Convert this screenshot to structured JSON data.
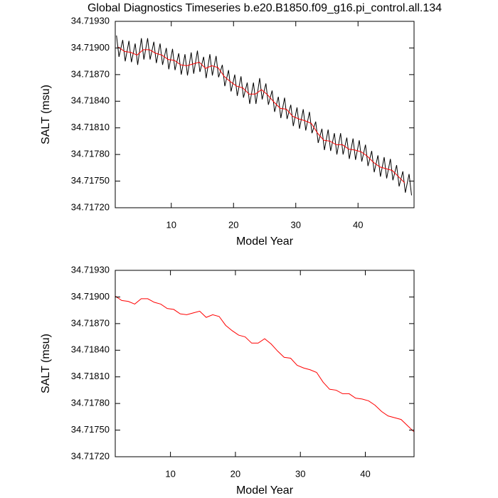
{
  "chart_data": [
    {
      "type": "line",
      "title": "Global Diagnostics Timeseries b.e20.B1850.f09_g16.pi_control.all.134",
      "xlabel": "Model Year",
      "ylabel": "SALT (msu)",
      "xlim": [
        1,
        49
      ],
      "xticks": [
        10,
        20,
        30,
        40
      ],
      "ylim": [
        34.7172,
        34.7193
      ],
      "yticks": [
        {
          "value": 34.7172,
          "label": "34.71720"
        },
        {
          "value": 34.7175,
          "label": "34.71750"
        },
        {
          "value": 34.7178,
          "label": "34.71780"
        },
        {
          "value": 34.7181,
          "label": "34.71810"
        },
        {
          "value": 34.7184,
          "label": "34.71840"
        },
        {
          "value": 34.7187,
          "label": "34.71870"
        },
        {
          "value": 34.719,
          "label": "34.71900"
        },
        {
          "value": 34.7193,
          "label": "34.71930"
        }
      ],
      "series": [
        {
          "color": "#000000",
          "x": [
            1.2,
            1.6,
            2.2,
            2.6,
            3.2,
            3.6,
            4.2,
            4.6,
            5.2,
            5.6,
            6.2,
            6.6,
            7.2,
            7.6,
            8.2,
            8.6,
            9.2,
            9.6,
            10.2,
            10.6,
            11.2,
            11.6,
            12.2,
            12.6,
            13.2,
            13.6,
            14.2,
            14.6,
            15.2,
            15.6,
            16.2,
            16.6,
            17.2,
            17.6,
            18.2,
            18.6,
            19.2,
            19.6,
            20.2,
            20.6,
            21.2,
            21.6,
            22.2,
            22.6,
            23.2,
            23.6,
            24.2,
            24.6,
            25.2,
            25.6,
            26.2,
            26.6,
            27.2,
            27.6,
            28.2,
            28.6,
            29.2,
            29.6,
            30.2,
            30.6,
            31.2,
            31.6,
            32.2,
            32.6,
            33.2,
            33.6,
            34.2,
            34.6,
            35.2,
            35.6,
            36.2,
            36.6,
            37.2,
            37.6,
            38.2,
            38.6,
            39.2,
            39.6,
            40.2,
            40.6,
            41.2,
            41.6,
            42.2,
            42.6,
            43.2,
            43.6,
            44.2,
            44.6,
            45.2,
            45.6,
            46.2,
            46.6,
            47.2,
            47.6,
            48.2,
            48.6
          ],
          "values": [
            34.71914,
            34.7189,
            34.71909,
            34.71885,
            34.71908,
            34.71884,
            34.71905,
            34.71881,
            34.71911,
            34.71887,
            34.71911,
            34.71887,
            34.71907,
            34.71883,
            34.71905,
            34.71881,
            34.719,
            34.71876,
            34.71899,
            34.71875,
            34.71894,
            34.7187,
            34.71893,
            34.71869,
            34.71895,
            34.71871,
            34.71897,
            34.71873,
            34.7189,
            34.71866,
            34.71893,
            34.71869,
            34.71891,
            34.71867,
            34.71881,
            34.71857,
            34.71875,
            34.71851,
            34.7187,
            34.71846,
            34.71868,
            34.71844,
            34.71861,
            34.71837,
            34.71861,
            34.71837,
            34.71866,
            34.71842,
            34.7186,
            34.71836,
            34.71852,
            34.71828,
            34.71845,
            34.71821,
            34.71844,
            34.7182,
            34.71836,
            34.71812,
            34.71833,
            34.71809,
            34.71831,
            34.71807,
            34.71828,
            34.71804,
            34.71817,
            34.71793,
            34.71809,
            34.71785,
            34.71808,
            34.71784,
            34.71804,
            34.7178,
            34.71804,
            34.7178,
            34.71799,
            34.71775,
            34.71798,
            34.71774,
            34.71796,
            34.71772,
            34.71791,
            34.71767,
            34.71784,
            34.7176,
            34.71779,
            34.71755,
            34.71777,
            34.71753,
            34.71775,
            34.71751,
            34.71768,
            34.71744,
            34.71761,
            34.71737,
            34.71758,
            34.71734
          ]
        },
        {
          "color": "#ff0000",
          "x": [
            1.5,
            2.5,
            3.5,
            4.5,
            5.5,
            6.5,
            7.5,
            8.5,
            9.5,
            10.5,
            11.5,
            12.5,
            13.5,
            14.5,
            15.5,
            16.5,
            17.5,
            18.5,
            19.5,
            20.5,
            21.5,
            22.5,
            23.5,
            24.5,
            25.5,
            26.5,
            27.5,
            28.5,
            29.5,
            30.5,
            31.5,
            32.5,
            33.5,
            34.5,
            35.5,
            36.5,
            37.5,
            38.5,
            39.5,
            40.5,
            41.5,
            42.5,
            43.5,
            44.5,
            45.5,
            46.5,
            47.5
          ],
          "values": [
            34.71901,
            34.71896,
            34.71895,
            34.71892,
            34.71898,
            34.71898,
            34.71894,
            34.71892,
            34.71887,
            34.71886,
            34.71881,
            34.7188,
            34.71882,
            34.71884,
            34.71877,
            34.7188,
            34.71878,
            34.71868,
            34.71862,
            34.71857,
            34.71855,
            34.71848,
            34.71848,
            34.71853,
            34.71847,
            34.71839,
            34.71832,
            34.71831,
            34.71823,
            34.7182,
            34.71818,
            34.71815,
            34.71804,
            34.71796,
            34.71795,
            34.71791,
            34.71791,
            34.71786,
            34.71785,
            34.71783,
            34.71778,
            34.71771,
            34.71766,
            34.71764,
            34.71762,
            34.71755,
            34.71748
          ]
        }
      ]
    },
    {
      "type": "line",
      "xlabel": "Model Year",
      "ylabel": "SALT (msu)",
      "xlim": [
        1.5,
        47.5
      ],
      "xticks": [
        10,
        20,
        30,
        40
      ],
      "ylim": [
        34.7172,
        34.7193
      ],
      "yticks": [
        {
          "value": 34.7172,
          "label": "34.71720"
        },
        {
          "value": 34.7175,
          "label": "34.71750"
        },
        {
          "value": 34.7178,
          "label": "34.71780"
        },
        {
          "value": 34.7181,
          "label": "34.71810"
        },
        {
          "value": 34.7184,
          "label": "34.71840"
        },
        {
          "value": 34.7187,
          "label": "34.71870"
        },
        {
          "value": 34.719,
          "label": "34.71900"
        },
        {
          "value": 34.7193,
          "label": "34.71930"
        }
      ],
      "series": [
        {
          "color": "#ff0000",
          "x": [
            1.5,
            2.5,
            3.5,
            4.5,
            5.5,
            6.5,
            7.5,
            8.5,
            9.5,
            10.5,
            11.5,
            12.5,
            13.5,
            14.5,
            15.5,
            16.5,
            17.5,
            18.5,
            19.5,
            20.5,
            21.5,
            22.5,
            23.5,
            24.5,
            25.5,
            26.5,
            27.5,
            28.5,
            29.5,
            30.5,
            31.5,
            32.5,
            33.5,
            34.5,
            35.5,
            36.5,
            37.5,
            38.5,
            39.5,
            40.5,
            41.5,
            42.5,
            43.5,
            44.5,
            45.5,
            46.5,
            47.5
          ],
          "values": [
            34.71901,
            34.71896,
            34.71895,
            34.71892,
            34.71898,
            34.71898,
            34.71894,
            34.71892,
            34.71887,
            34.71886,
            34.71881,
            34.7188,
            34.71882,
            34.71884,
            34.71877,
            34.7188,
            34.71878,
            34.71868,
            34.71862,
            34.71857,
            34.71855,
            34.71848,
            34.71848,
            34.71853,
            34.71847,
            34.71839,
            34.71832,
            34.71831,
            34.71823,
            34.7182,
            34.71818,
            34.71815,
            34.71804,
            34.71796,
            34.71795,
            34.71791,
            34.71791,
            34.71786,
            34.71785,
            34.71783,
            34.71778,
            34.71771,
            34.71766,
            34.71764,
            34.71762,
            34.71755,
            34.71748
          ]
        }
      ]
    }
  ]
}
